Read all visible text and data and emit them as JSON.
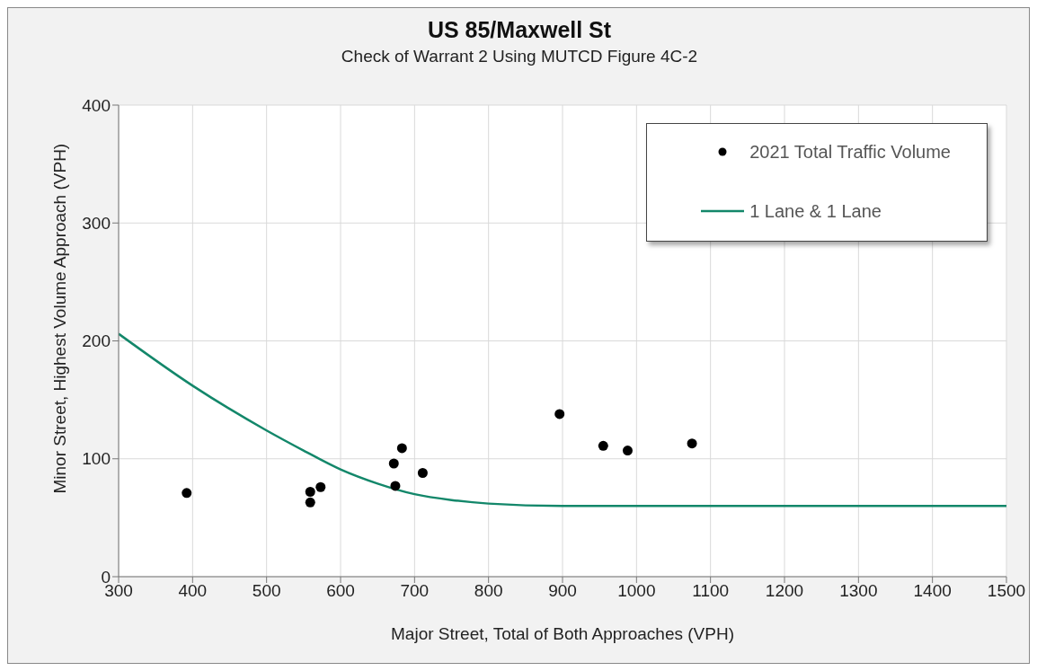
{
  "chart_data": {
    "type": "scatter",
    "title": "US 85/Maxwell St",
    "subtitle": "Check of Warrant 2 Using MUTCD Figure 4C-2",
    "xlabel": "Major Street, Total of Both Approaches (VPH)",
    "ylabel": "Minor Street, Highest Volume Approach (VPH)",
    "series": [
      {
        "name": "2021 Total Traffic Volume",
        "color": "#000000",
        "marker": "circle",
        "x": [
          392,
          559,
          559,
          573,
          672,
          674,
          683,
          711,
          896,
          955,
          988,
          1075
        ],
        "values": [
          71,
          72,
          63,
          76,
          96,
          77,
          109,
          88,
          138,
          111,
          107,
          113
        ]
      },
      {
        "name": "1 Lane & 1 Lane",
        "type": "line",
        "color": "#13876a",
        "marker": "none",
        "x": [
          300,
          400,
          500,
          550,
          600,
          650,
          700,
          750,
          800,
          900,
          1000,
          1500
        ],
        "values": [
          206,
          162,
          124,
          107,
          91,
          79,
          70,
          65,
          62,
          60,
          60,
          60
        ]
      }
    ],
    "xlim": [
      300,
      1500
    ],
    "xticks": [
      300,
      400,
      500,
      600,
      700,
      800,
      900,
      1000,
      1100,
      1200,
      1300,
      1400,
      1500
    ],
    "ylim": [
      0,
      400
    ],
    "yticks": [
      0,
      100,
      200,
      300,
      400
    ],
    "grid": true,
    "legend": "top right"
  }
}
